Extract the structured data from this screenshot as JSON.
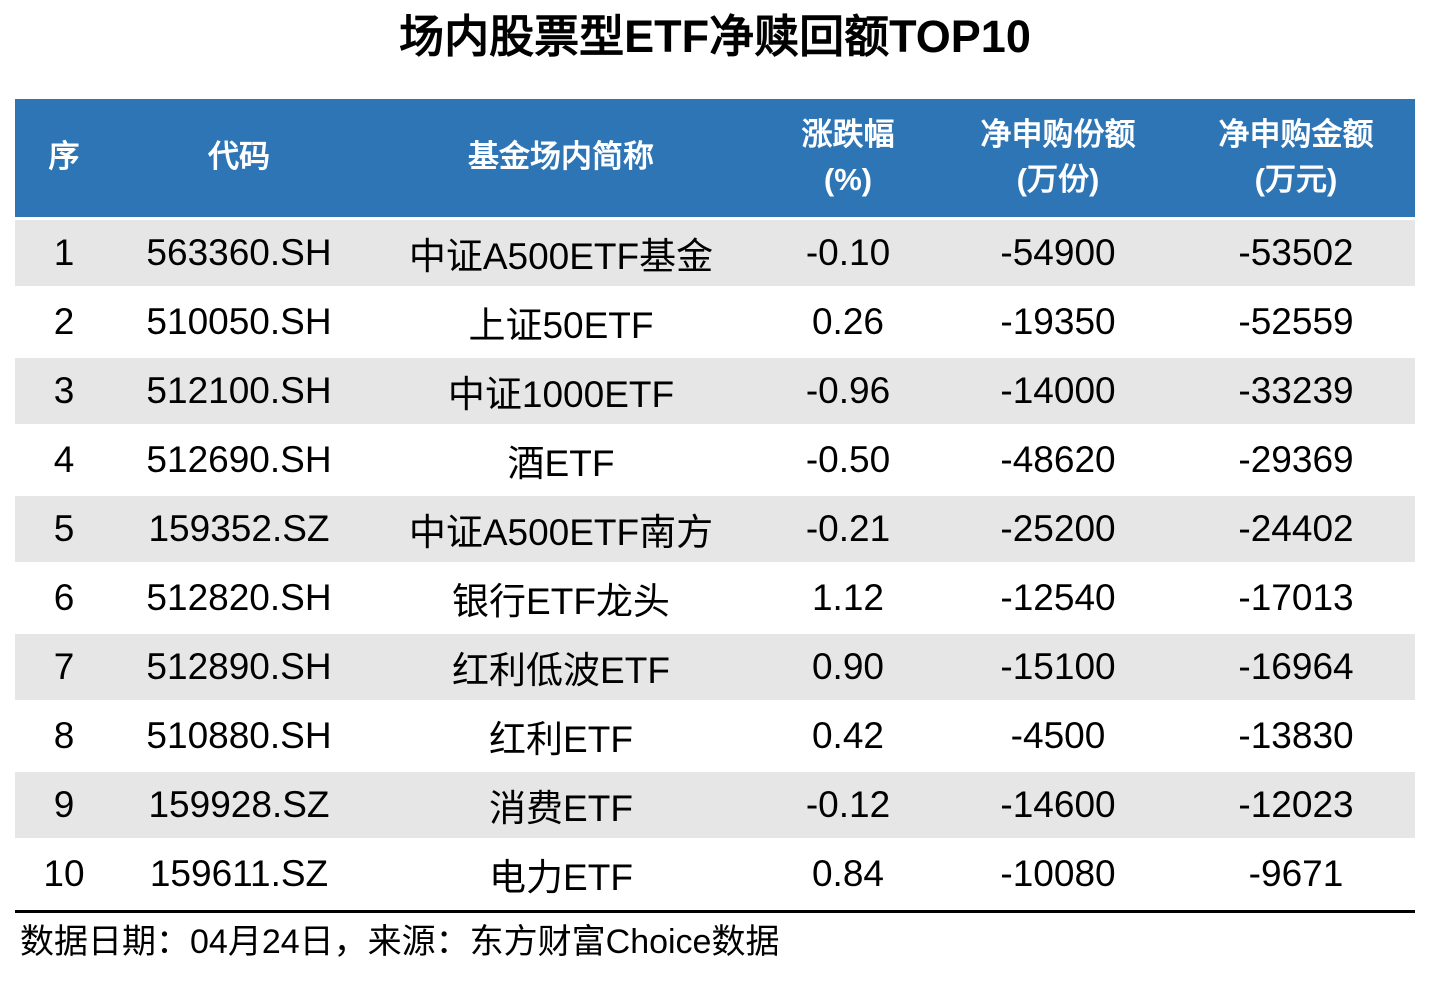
{
  "title": "场内股票型ETF净赎回额TOP10",
  "colors": {
    "header_bg": "#2E75B6",
    "header_text": "#FFFFFF",
    "stripe_bg": "#E6E6E6",
    "body_text": "#000000"
  },
  "table": {
    "columns": [
      {
        "key": "seq",
        "label": "序",
        "unit": ""
      },
      {
        "key": "code",
        "label": "代码",
        "unit": ""
      },
      {
        "key": "name",
        "label": "基金场内简称",
        "unit": ""
      },
      {
        "key": "change",
        "label": "涨跌幅",
        "unit": "(%)"
      },
      {
        "key": "shares",
        "label": "净申购份额",
        "unit": "(万份)"
      },
      {
        "key": "amount",
        "label": "净申购金额",
        "unit": "(万元)"
      }
    ],
    "rows": [
      {
        "seq": "1",
        "code": "563360.SH",
        "name": "中证A500ETF基金",
        "change": "-0.10",
        "shares": "-54900",
        "amount": "-53502"
      },
      {
        "seq": "2",
        "code": "510050.SH",
        "name": "上证50ETF",
        "change": "0.26",
        "shares": "-19350",
        "amount": "-52559"
      },
      {
        "seq": "3",
        "code": "512100.SH",
        "name": "中证1000ETF",
        "change": "-0.96",
        "shares": "-14000",
        "amount": "-33239"
      },
      {
        "seq": "4",
        "code": "512690.SH",
        "name": "酒ETF",
        "change": "-0.50",
        "shares": "-48620",
        "amount": "-29369"
      },
      {
        "seq": "5",
        "code": "159352.SZ",
        "name": "中证A500ETF南方",
        "change": "-0.21",
        "shares": "-25200",
        "amount": "-24402"
      },
      {
        "seq": "6",
        "code": "512820.SH",
        "name": "银行ETF龙头",
        "change": "1.12",
        "shares": "-12540",
        "amount": "-17013"
      },
      {
        "seq": "7",
        "code": "512890.SH",
        "name": "红利低波ETF",
        "change": "0.90",
        "shares": "-15100",
        "amount": "-16964"
      },
      {
        "seq": "8",
        "code": "510880.SH",
        "name": "红利ETF",
        "change": "0.42",
        "shares": "-4500",
        "amount": "-13830"
      },
      {
        "seq": "9",
        "code": "159928.SZ",
        "name": "消费ETF",
        "change": "-0.12",
        "shares": "-14600",
        "amount": "-12023"
      },
      {
        "seq": "10",
        "code": "159611.SZ",
        "name": "电力ETF",
        "change": "0.84",
        "shares": "-10080",
        "amount": "-9671"
      }
    ]
  },
  "footer": {
    "text": "数据日期：04月24日，来源：东方财富Choice数据"
  },
  "chart_data": {
    "type": "table",
    "title": "场内股票型ETF净赎回额TOP10",
    "columns": [
      "序",
      "代码",
      "基金场内简称",
      "涨跌幅(%)",
      "净申购份额(万份)",
      "净申购金额(万元)"
    ],
    "rows": [
      [
        1,
        "563360.SH",
        "中证A500ETF基金",
        -0.1,
        -54900,
        -53502
      ],
      [
        2,
        "510050.SH",
        "上证50ETF",
        0.26,
        -19350,
        -52559
      ],
      [
        3,
        "512100.SH",
        "中证1000ETF",
        -0.96,
        -14000,
        -33239
      ],
      [
        4,
        "512690.SH",
        "酒ETF",
        -0.5,
        -48620,
        -29369
      ],
      [
        5,
        "159352.SZ",
        "中证A500ETF南方",
        -0.21,
        -25200,
        -24402
      ],
      [
        6,
        "512820.SH",
        "银行ETF龙头",
        1.12,
        -12540,
        -17013
      ],
      [
        7,
        "512890.SH",
        "红利低波ETF",
        0.9,
        -15100,
        -16964
      ],
      [
        8,
        "510880.SH",
        "红利ETF",
        0.42,
        -4500,
        -13830
      ],
      [
        9,
        "159928.SZ",
        "消费ETF",
        -0.12,
        -14600,
        -12023
      ],
      [
        10,
        "159611.SZ",
        "电力ETF",
        0.84,
        -10080,
        -9671
      ]
    ],
    "source_note": "数据日期：04月24日，来源：东方财富Choice数据",
    "layout": {
      "header_style": "blue-banner",
      "row_striping": true,
      "alignment": "center"
    }
  }
}
